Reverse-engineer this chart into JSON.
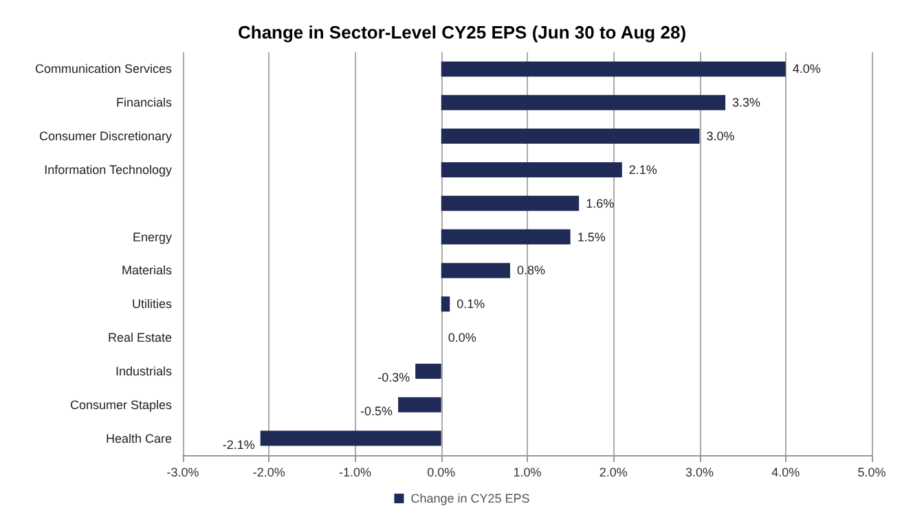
{
  "chart_data": {
    "type": "bar",
    "orientation": "horizontal",
    "title": "Change in Sector-Level CY25 EPS (Jun 30 to Aug 28)",
    "categories": [
      "Communication Services",
      "Financials",
      "Consumer Discretionary",
      "Information Technology",
      null,
      "Energy",
      "Materials",
      "Utilities",
      "Real Estate",
      "Industrials",
      "Consumer Staples",
      "Health Care"
    ],
    "series": [
      {
        "name": "Change in CY25 EPS",
        "color": "#1f2a56",
        "values": [
          4.0,
          3.3,
          3.0,
          2.1,
          1.6,
          1.5,
          0.8,
          0.1,
          0.0,
          -0.3,
          -0.5,
          -2.1
        ],
        "value_labels": [
          "4.0%",
          "3.3%",
          "3.0%",
          "2.1%",
          "1.6%",
          "1.5%",
          "0.8%",
          "0.1%",
          "0.0%",
          "-0.3%",
          "-0.5%",
          "-2.1%"
        ]
      }
    ],
    "xlim": [
      -3,
      5
    ],
    "xticks": [
      {
        "value": -3,
        "label": "-3.0%"
      },
      {
        "value": -2,
        "label": "-2.0%"
      },
      {
        "value": -1,
        "label": "-1.0%"
      },
      {
        "value": 0,
        "label": "0.0%"
      },
      {
        "value": 1,
        "label": "1.0%"
      },
      {
        "value": 2,
        "label": "2.0%"
      },
      {
        "value": 3,
        "label": "3.0%"
      },
      {
        "value": 4,
        "label": "4.0%"
      },
      {
        "value": 5,
        "label": "5.0%"
      }
    ],
    "grid": "x",
    "legend": "bottom"
  }
}
